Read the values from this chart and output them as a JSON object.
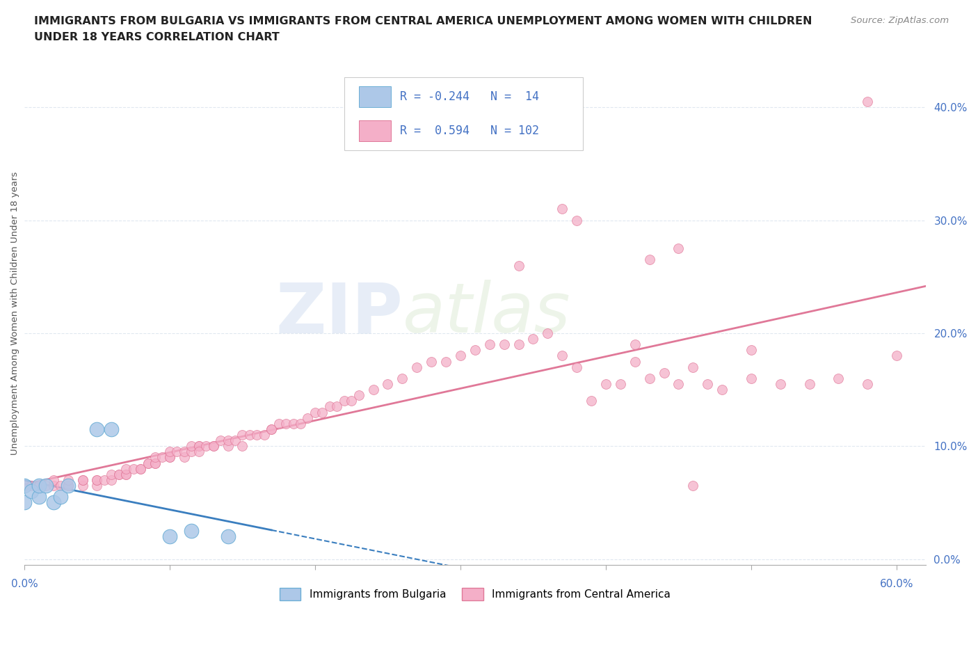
{
  "title_line1": "IMMIGRANTS FROM BULGARIA VS IMMIGRANTS FROM CENTRAL AMERICA UNEMPLOYMENT AMONG WOMEN WITH CHILDREN",
  "title_line2": "UNDER 18 YEARS CORRELATION CHART",
  "source": "Source: ZipAtlas.com",
  "ylabel": "Unemployment Among Women with Children Under 18 years",
  "series": [
    {
      "label": "Immigrants from Bulgaria",
      "color": "#adc8e8",
      "border_color": "#6baed6",
      "trend_color": "#3a7ebf",
      "R": -0.244,
      "N": 14,
      "x": [
        0.0,
        0.0,
        0.005,
        0.01,
        0.01,
        0.015,
        0.02,
        0.025,
        0.03,
        0.05,
        0.06,
        0.1,
        0.115,
        0.14
      ],
      "y": [
        0.065,
        0.05,
        0.06,
        0.055,
        0.065,
        0.065,
        0.05,
        0.055,
        0.065,
        0.115,
        0.115,
        0.02,
        0.025,
        0.02
      ]
    },
    {
      "label": "Immigrants from Central America",
      "color": "#f4afc8",
      "border_color": "#e07898",
      "trend_color": "#e07898",
      "R": 0.594,
      "N": 102,
      "x": [
        0.0,
        0.005,
        0.01,
        0.01,
        0.015,
        0.02,
        0.02,
        0.025,
        0.03,
        0.03,
        0.03,
        0.04,
        0.04,
        0.04,
        0.05,
        0.05,
        0.05,
        0.055,
        0.06,
        0.06,
        0.065,
        0.065,
        0.07,
        0.07,
        0.07,
        0.075,
        0.08,
        0.08,
        0.085,
        0.085,
        0.09,
        0.09,
        0.09,
        0.095,
        0.1,
        0.1,
        0.1,
        0.105,
        0.11,
        0.11,
        0.115,
        0.115,
        0.12,
        0.12,
        0.12,
        0.125,
        0.13,
        0.13,
        0.135,
        0.14,
        0.14,
        0.145,
        0.15,
        0.15,
        0.155,
        0.16,
        0.165,
        0.17,
        0.17,
        0.175,
        0.18,
        0.185,
        0.19,
        0.195,
        0.2,
        0.205,
        0.21,
        0.215,
        0.22,
        0.225,
        0.23,
        0.24,
        0.25,
        0.26,
        0.27,
        0.28,
        0.29,
        0.3,
        0.31,
        0.32,
        0.33,
        0.34,
        0.35,
        0.36,
        0.37,
        0.38,
        0.39,
        0.4,
        0.41,
        0.42,
        0.43,
        0.44,
        0.45,
        0.46,
        0.47,
        0.48,
        0.5,
        0.52,
        0.54,
        0.56,
        0.58,
        0.6
      ],
      "y": [
        0.065,
        0.065,
        0.065,
        0.065,
        0.065,
        0.065,
        0.07,
        0.065,
        0.065,
        0.065,
        0.07,
        0.065,
        0.07,
        0.07,
        0.065,
        0.07,
        0.07,
        0.07,
        0.07,
        0.075,
        0.075,
        0.075,
        0.075,
        0.075,
        0.08,
        0.08,
        0.08,
        0.08,
        0.085,
        0.085,
        0.085,
        0.085,
        0.09,
        0.09,
        0.09,
        0.09,
        0.095,
        0.095,
        0.09,
        0.095,
        0.095,
        0.1,
        0.1,
        0.1,
        0.095,
        0.1,
        0.1,
        0.1,
        0.105,
        0.1,
        0.105,
        0.105,
        0.1,
        0.11,
        0.11,
        0.11,
        0.11,
        0.115,
        0.115,
        0.12,
        0.12,
        0.12,
        0.12,
        0.125,
        0.13,
        0.13,
        0.135,
        0.135,
        0.14,
        0.14,
        0.145,
        0.15,
        0.155,
        0.16,
        0.17,
        0.175,
        0.175,
        0.18,
        0.185,
        0.19,
        0.19,
        0.19,
        0.195,
        0.2,
        0.18,
        0.17,
        0.14,
        0.155,
        0.155,
        0.175,
        0.16,
        0.165,
        0.155,
        0.17,
        0.155,
        0.15,
        0.16,
        0.155,
        0.155,
        0.16,
        0.155,
        0.18
      ]
    }
  ],
  "outlier_ca": {
    "x": [
      0.37,
      0.38,
      0.43,
      0.45,
      0.58
    ],
    "y": [
      0.31,
      0.3,
      0.265,
      0.275,
      0.405
    ]
  },
  "outlier_ca2": {
    "x": [
      0.34,
      0.42,
      0.46,
      0.5
    ],
    "y": [
      0.26,
      0.19,
      0.065,
      0.185
    ]
  },
  "xlim": [
    0.0,
    0.62
  ],
  "ylim": [
    -0.005,
    0.44
  ],
  "yticks": [
    0.0,
    0.1,
    0.2,
    0.3,
    0.4
  ],
  "ytick_labels": [
    "0.0%",
    "10.0%",
    "20.0%",
    "30.0%",
    "40.0%"
  ],
  "xtick_positions": [
    0.0,
    0.1,
    0.2,
    0.3,
    0.4,
    0.5,
    0.6
  ],
  "grid_color": "#e0e8f0",
  "watermark_zip": "ZIP",
  "watermark_atlas": "atlas",
  "legend_R_color": "#4472c4",
  "bg_color": "#ffffff",
  "title_fontsize": 11.5,
  "tick_fontsize": 11
}
